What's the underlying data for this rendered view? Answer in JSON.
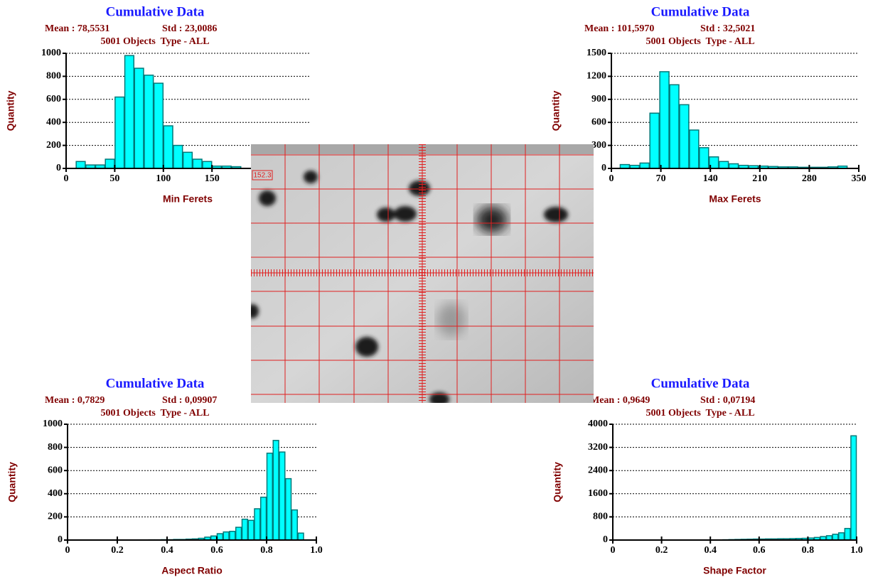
{
  "chart_data": [
    {
      "type": "histogram",
      "title": "Cumulative Data",
      "mean": "Mean : 78,5531",
      "std": "Std : 23,0086",
      "subtitle": "5001 Objects  Type - ALL",
      "xlabel": "Min Ferets",
      "ylabel": "Quantity",
      "color": "#00ffff",
      "grid": true,
      "bins": [
        10,
        20,
        30,
        40,
        50,
        60,
        70,
        80,
        90,
        100,
        110,
        120,
        130,
        140,
        150,
        160,
        170,
        180
      ],
      "values": [
        60,
        30,
        30,
        80,
        620,
        980,
        870,
        810,
        740,
        370,
        200,
        140,
        80,
        60,
        20,
        20,
        15
      ],
      "xlim": [
        0,
        250
      ],
      "xticks": [
        0,
        50,
        100,
        150
      ],
      "ylim": [
        0,
        1000
      ],
      "yticks": [
        0,
        200,
        400,
        600,
        800,
        1000
      ]
    },
    {
      "type": "histogram",
      "title": "Cumulative Data",
      "mean": "Mean : 101,5970",
      "std": "Std : 32,5021",
      "subtitle": "5001 Objects  Type - ALL",
      "xlabel": "Max Ferets",
      "ylabel": "Quantity",
      "color": "#00ffff",
      "grid": true,
      "bins": [
        12,
        26,
        40,
        54,
        68,
        82,
        96,
        110,
        124,
        138,
        152,
        166,
        180,
        194,
        208,
        222,
        236,
        250,
        264,
        278,
        292,
        306,
        320,
        334
      ],
      "values": [
        50,
        40,
        70,
        720,
        1260,
        1090,
        830,
        500,
        270,
        150,
        90,
        60,
        40,
        35,
        30,
        25,
        20,
        20,
        15,
        15,
        15,
        20,
        30
      ],
      "xlim": [
        0,
        350
      ],
      "xticks": [
        0,
        70,
        140,
        210,
        280,
        350
      ],
      "ylim": [
        0,
        1500
      ],
      "yticks": [
        0,
        300,
        600,
        900,
        1200,
        1500
      ]
    },
    {
      "type": "histogram",
      "title": "Cumulative Data",
      "mean": "Mean : 0,7829",
      "std": "Std : 0,09907",
      "subtitle": "5001 Objects  Type - ALL",
      "xlabel": "Aspect Ratio",
      "ylabel": "Quantity",
      "color": "#00ffff",
      "grid": true,
      "bins": [
        0.325,
        0.35,
        0.375,
        0.4,
        0.425,
        0.45,
        0.475,
        0.5,
        0.525,
        0.55,
        0.575,
        0.6,
        0.625,
        0.65,
        0.675,
        0.7,
        0.725,
        0.75,
        0.775,
        0.8,
        0.825,
        0.85,
        0.875,
        0.9,
        0.925,
        0.95
      ],
      "values": [
        2,
        2,
        3,
        3,
        5,
        5,
        8,
        10,
        15,
        25,
        35,
        55,
        70,
        75,
        110,
        180,
        170,
        270,
        370,
        750,
        860,
        760,
        530,
        260,
        60
      ],
      "xlim": [
        0,
        1
      ],
      "xticks": [
        0,
        0.2,
        0.4,
        0.6,
        0.8,
        {
          "value": 1,
          "label": "1.0"
        }
      ],
      "ylim": [
        0,
        1000
      ],
      "yticks": [
        0,
        200,
        400,
        600,
        800,
        1000
      ]
    },
    {
      "type": "histogram",
      "title": "Cumulative Data",
      "mean": "Mean : 0,9649",
      "std": "Std : 0,07194",
      "subtitle": "5001 Objects  Type - ALL",
      "xlabel": "Shape Factor",
      "ylabel": "Quantity",
      "color": "#00ffff",
      "grid": true,
      "bins": [
        0.45,
        0.475,
        0.5,
        0.525,
        0.55,
        0.575,
        0.6,
        0.625,
        0.65,
        0.675,
        0.7,
        0.725,
        0.75,
        0.775,
        0.8,
        0.825,
        0.85,
        0.875,
        0.9,
        0.925,
        0.95,
        0.975,
        1
      ],
      "values": [
        10,
        15,
        20,
        25,
        30,
        35,
        35,
        40,
        40,
        45,
        45,
        50,
        55,
        60,
        70,
        90,
        120,
        150,
        200,
        250,
        400,
        3600
      ],
      "xlim": [
        0,
        1
      ],
      "xticks": [
        0,
        0.2,
        0.4,
        0.6,
        0.8,
        {
          "value": 1,
          "label": "1.0"
        }
      ],
      "ylim": [
        0,
        4000
      ],
      "yticks": [
        0,
        800,
        1600,
        2400,
        3200,
        4000
      ]
    }
  ],
  "image": {
    "label": "152.3"
  }
}
